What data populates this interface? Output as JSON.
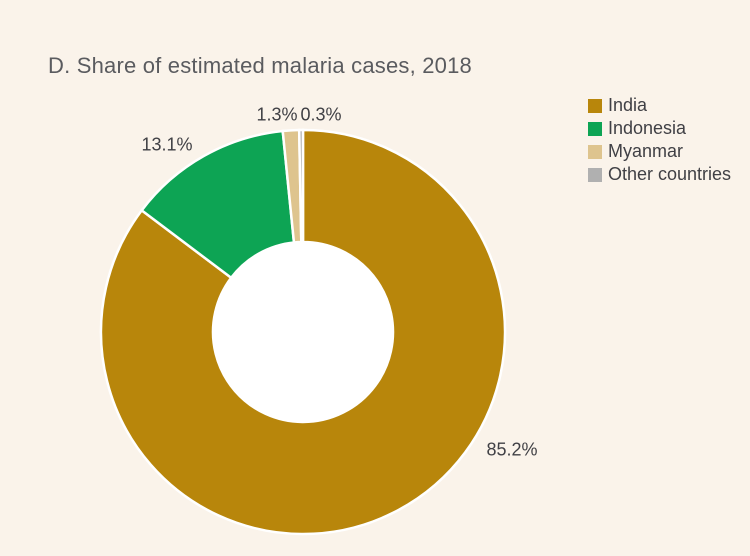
{
  "chart_data": {
    "type": "pie",
    "subtype": "donut",
    "title": "D. Share of estimated malaria cases, 2018",
    "categories": [
      "India",
      "Indonesia",
      "Myanmar",
      "Other countries"
    ],
    "values": [
      85.2,
      13.1,
      1.3,
      0.3
    ],
    "unit": "%",
    "slices": [
      {
        "label": "India",
        "value": 85.2,
        "pct_label": "85.2%",
        "color": "#B8860B"
      },
      {
        "label": "Indonesia",
        "value": 13.1,
        "pct_label": "13.1%",
        "color": "#0DA454"
      },
      {
        "label": "Myanmar",
        "value": 1.3,
        "pct_label": "1.3%",
        "color": "#DEC48E"
      },
      {
        "label": "Other countries",
        "value": 0.3,
        "pct_label": "0.3%",
        "color": "#B0B0B0"
      }
    ],
    "start_angle_deg": 0,
    "direction": "clockwise",
    "legend_position": "top-right",
    "donut_hole_color": "#FFFFFF",
    "separator_color": "#FFFFFF"
  },
  "colors": {
    "background": "#FAF3EA",
    "title_text": "#5A5B5F",
    "label_text": "#404045"
  }
}
